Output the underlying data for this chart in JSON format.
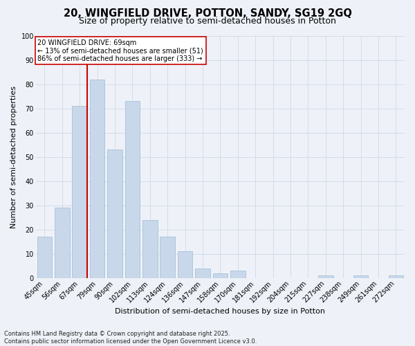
{
  "title": "20, WINGFIELD DRIVE, POTTON, SANDY, SG19 2GQ",
  "subtitle": "Size of property relative to semi-detached houses in Potton",
  "xlabel": "Distribution of semi-detached houses by size in Potton",
  "ylabel": "Number of semi-detached properties",
  "footer_line1": "Contains HM Land Registry data © Crown copyright and database right 2025.",
  "footer_line2": "Contains public sector information licensed under the Open Government Licence v3.0.",
  "categories": [
    "45sqm",
    "56sqm",
    "67sqm",
    "79sqm",
    "90sqm",
    "102sqm",
    "113sqm",
    "124sqm",
    "136sqm",
    "147sqm",
    "158sqm",
    "170sqm",
    "181sqm",
    "192sqm",
    "204sqm",
    "215sqm",
    "227sqm",
    "238sqm",
    "249sqm",
    "261sqm",
    "272sqm"
  ],
  "values": [
    17,
    29,
    71,
    82,
    53,
    73,
    24,
    17,
    11,
    4,
    2,
    3,
    0,
    0,
    0,
    0,
    1,
    0,
    1,
    0,
    1
  ],
  "bar_color": "#c8d8ea",
  "bar_edgecolor": "#a8c0d8",
  "redline_index": 2,
  "annotation_title": "20 WINGFIELD DRIVE: 69sqm",
  "annotation_line2": "← 13% of semi-detached houses are smaller (51)",
  "annotation_line3": "86% of semi-detached houses are larger (333) →",
  "annotation_box_facecolor": "#ffffff",
  "annotation_box_edgecolor": "#cc0000",
  "redline_color": "#cc0000",
  "ylim": [
    0,
    100
  ],
  "yticks": [
    0,
    10,
    20,
    30,
    40,
    50,
    60,
    70,
    80,
    90,
    100
  ],
  "grid_color": "#d0d8e8",
  "background_color": "#eef2f8",
  "title_fontsize": 10.5,
  "subtitle_fontsize": 9,
  "axis_label_fontsize": 8,
  "tick_fontsize": 7,
  "annotation_fontsize": 7,
  "footer_fontsize": 6
}
